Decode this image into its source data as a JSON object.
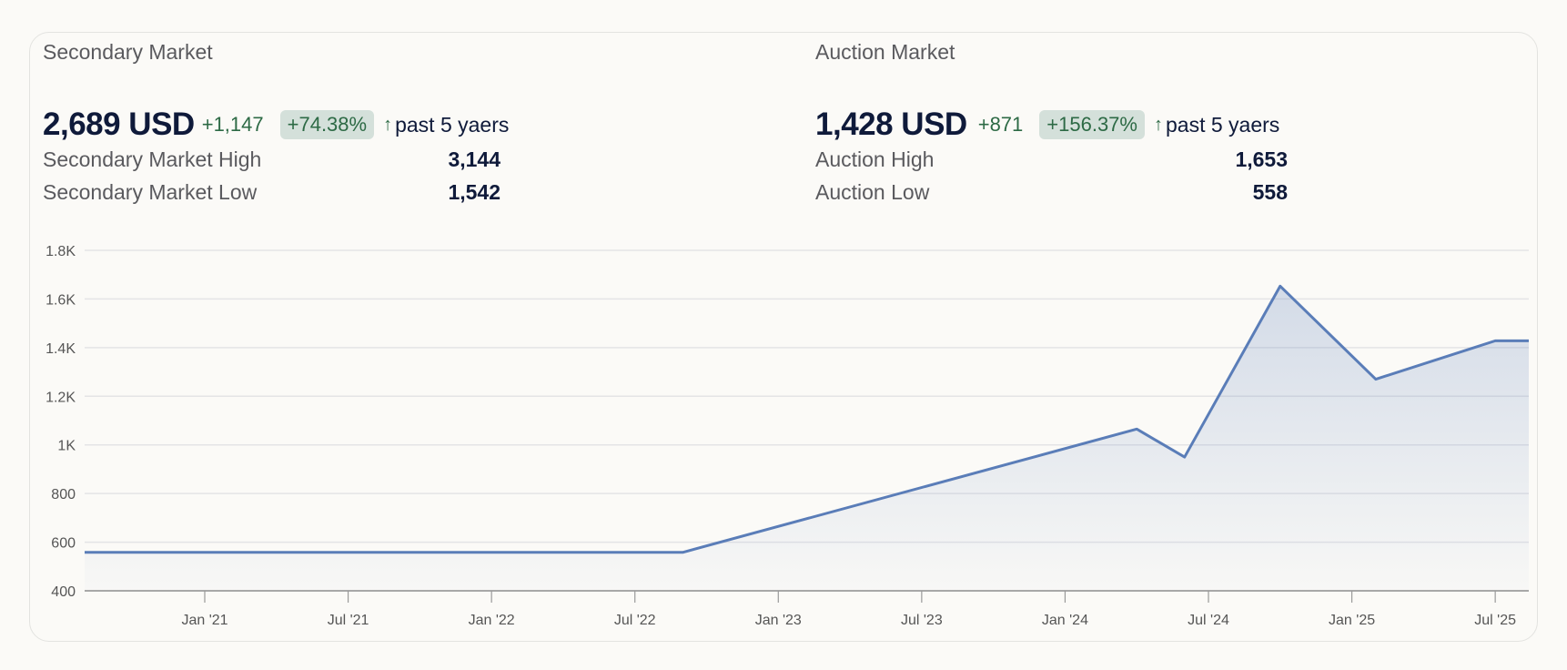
{
  "secondary": {
    "title": "Secondary Market",
    "price": "2,689 USD",
    "change": "+1,147",
    "change_pct": "+74.38%",
    "period": "past 5 yaers",
    "high_label": "Secondary Market High",
    "high_value": "3,144",
    "low_label": "Secondary Market Low",
    "low_value": "1,542"
  },
  "auction": {
    "title": "Auction Market",
    "price": "1,428 USD",
    "change": "+871",
    "change_pct": "+156.37%",
    "period": "past 5 yaers",
    "high_label": "Auction High",
    "high_value": "1,653",
    "low_label": "Auction Low",
    "low_value": "558"
  },
  "colors": {
    "line": "#5a7db8",
    "positive": "#2d6a45",
    "badge_bg": "#d4e0da",
    "text": "#0f1a3a"
  },
  "icons": {
    "trend": "arrow-up-icon"
  },
  "chart_data": {
    "type": "area",
    "x": [
      "2020-08",
      "2022-09",
      "2024-04",
      "2024-06",
      "2024-10",
      "2025-02",
      "2025-07",
      "2025-09"
    ],
    "values": [
      558,
      558,
      1065,
      950,
      1653,
      1270,
      1428,
      1428
    ],
    "ylim": [
      400,
      1800
    ],
    "yticks": [
      400,
      600,
      800,
      1000,
      1200,
      1400,
      1600,
      1800
    ],
    "ytick_labels": [
      "400",
      "600",
      "800",
      "1K",
      "1.2K",
      "1.4K",
      "1.6K",
      "1.8K"
    ],
    "xticks": [
      "2021-01",
      "2021-07",
      "2022-01",
      "2022-07",
      "2023-01",
      "2023-07",
      "2024-01",
      "2024-07",
      "2025-01",
      "2025-07"
    ],
    "xtick_labels": [
      "Jan '21",
      "Jul '21",
      "Jan '22",
      "Jul '22",
      "Jan '23",
      "Jul '23",
      "Jan '24",
      "Jul '24",
      "Jan '25",
      "Jul '25"
    ],
    "grid": true,
    "legend": "none"
  }
}
